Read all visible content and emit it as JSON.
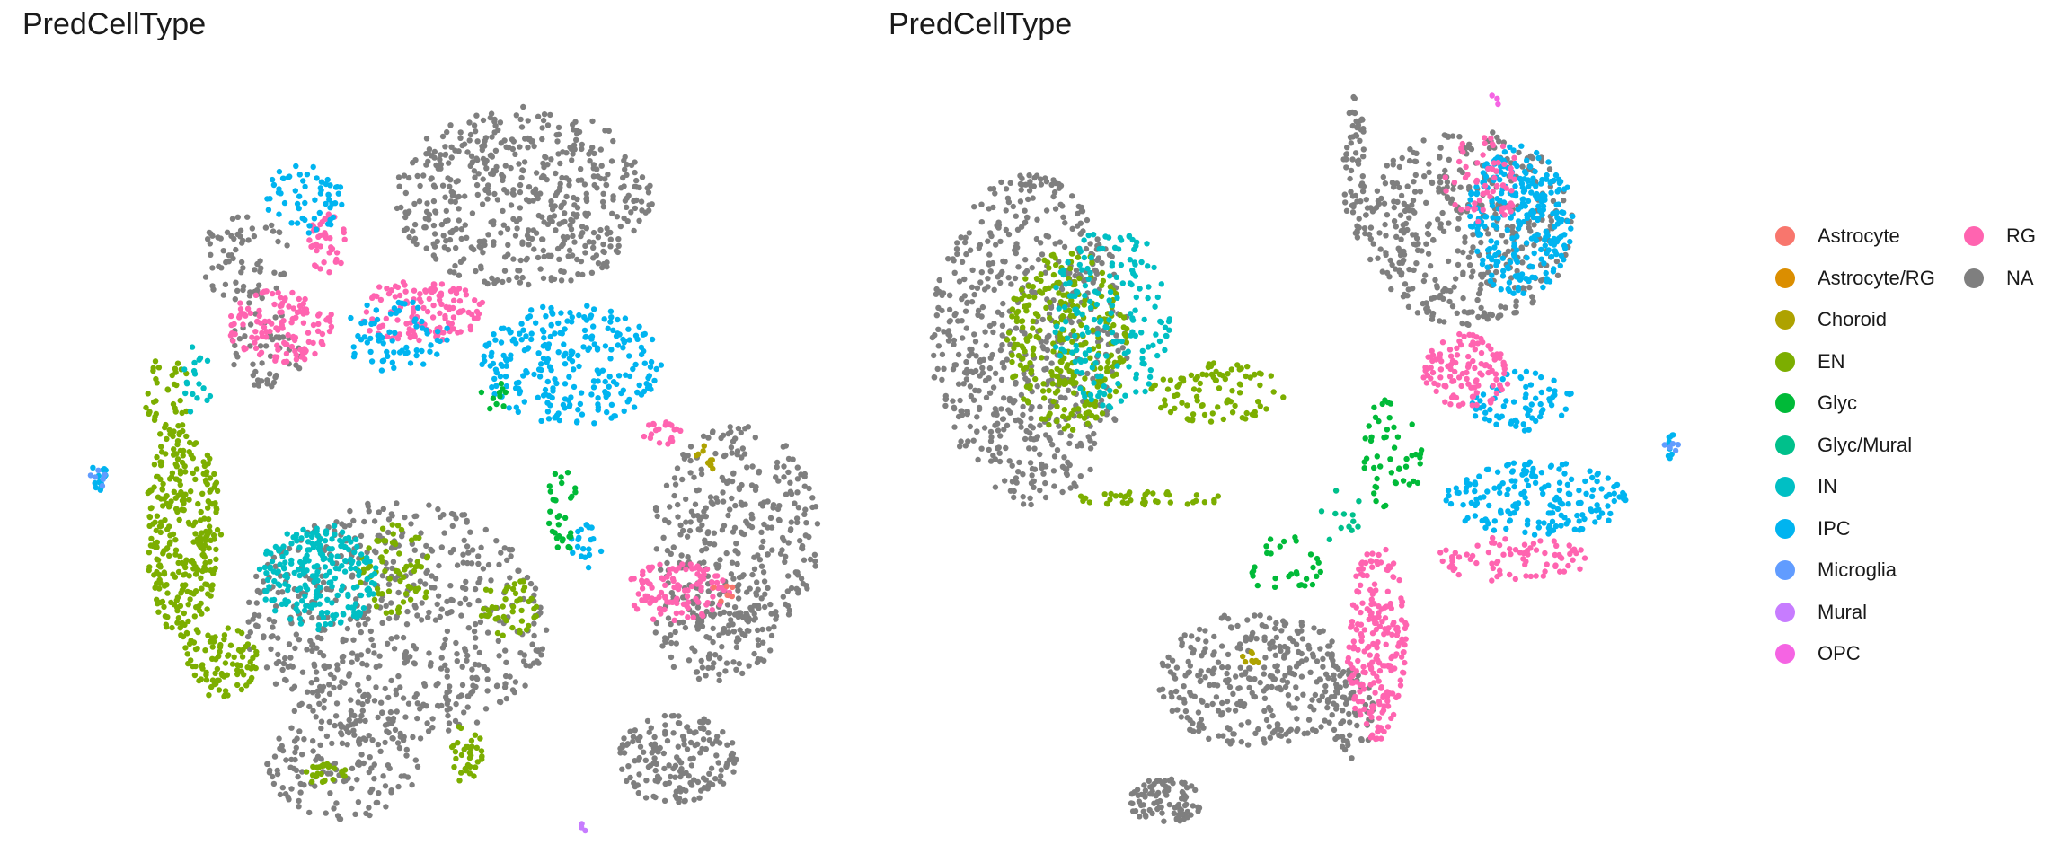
{
  "panels": [
    {
      "title": "PredCellType"
    },
    {
      "title": "PredCellType"
    }
  ],
  "legend": {
    "title": "",
    "items": [
      {
        "label": "Astrocyte",
        "color": "#F8766D"
      },
      {
        "label": "Astrocyte/RG",
        "color": "#DB8E00"
      },
      {
        "label": "Choroid",
        "color": "#AEA200"
      },
      {
        "label": "EN",
        "color": "#7CAE00"
      },
      {
        "label": "Glyc",
        "color": "#00BA38"
      },
      {
        "label": "Glyc/Mural",
        "color": "#00C08B"
      },
      {
        "label": "IN",
        "color": "#00BFC4"
      },
      {
        "label": "IPC",
        "color": "#00B4F0"
      },
      {
        "label": "Microglia",
        "color": "#619CFF"
      },
      {
        "label": "Mural",
        "color": "#C77CFF"
      },
      {
        "label": "OPC",
        "color": "#F564E3"
      },
      {
        "label": "RG",
        "color": "#FF64B0"
      },
      {
        "label": "NA",
        "color": "#7F7F7F"
      }
    ]
  },
  "chart_data": [
    {
      "type": "scatter",
      "title": "PredCellType",
      "xlabel": "",
      "ylabel": "",
      "axes_visible": false,
      "grid": false,
      "legend_placement": "right",
      "clusters": [
        {
          "category": "NA",
          "cx": 0.62,
          "cy": 0.16,
          "rx": 0.17,
          "ry": 0.12,
          "n": 520
        },
        {
          "category": "NA",
          "cx": 0.9,
          "cy": 0.6,
          "rx": 0.11,
          "ry": 0.14,
          "n": 320
        },
        {
          "category": "NA",
          "cx": 0.25,
          "cy": 0.24,
          "rx": 0.06,
          "ry": 0.06,
          "n": 70
        },
        {
          "category": "NA",
          "cx": 0.45,
          "cy": 0.72,
          "rx": 0.2,
          "ry": 0.16,
          "n": 600
        },
        {
          "category": "NA",
          "cx": 0.82,
          "cy": 0.9,
          "rx": 0.08,
          "ry": 0.06,
          "n": 170
        },
        {
          "category": "NA",
          "cx": 0.87,
          "cy": 0.73,
          "rx": 0.08,
          "ry": 0.07,
          "n": 130
        },
        {
          "category": "NA",
          "cx": 0.38,
          "cy": 0.91,
          "rx": 0.1,
          "ry": 0.07,
          "n": 140
        },
        {
          "category": "NA",
          "cx": 0.28,
          "cy": 0.36,
          "rx": 0.05,
          "ry": 0.05,
          "n": 50
        },
        {
          "category": "RG",
          "cx": 0.3,
          "cy": 0.33,
          "rx": 0.07,
          "ry": 0.05,
          "n": 130
        },
        {
          "category": "RG",
          "cx": 0.48,
          "cy": 0.31,
          "rx": 0.09,
          "ry": 0.04,
          "n": 130
        },
        {
          "category": "RG",
          "cx": 0.36,
          "cy": 0.22,
          "rx": 0.025,
          "ry": 0.04,
          "n": 40
        },
        {
          "category": "RG",
          "cx": 0.82,
          "cy": 0.68,
          "rx": 0.07,
          "ry": 0.04,
          "n": 110
        },
        {
          "category": "RG",
          "cx": 0.8,
          "cy": 0.47,
          "rx": 0.03,
          "ry": 0.02,
          "n": 20
        },
        {
          "category": "IPC",
          "cx": 0.33,
          "cy": 0.16,
          "rx": 0.05,
          "ry": 0.05,
          "n": 60
        },
        {
          "category": "IPC",
          "cx": 0.68,
          "cy": 0.38,
          "rx": 0.12,
          "ry": 0.08,
          "n": 260
        },
        {
          "category": "IPC",
          "cx": 0.45,
          "cy": 0.34,
          "rx": 0.07,
          "ry": 0.05,
          "n": 70
        },
        {
          "category": "IPC",
          "cx": 0.06,
          "cy": 0.53,
          "rx": 0.015,
          "ry": 0.02,
          "n": 14
        },
        {
          "category": "IPC",
          "cx": 0.7,
          "cy": 0.62,
          "rx": 0.025,
          "ry": 0.03,
          "n": 20
        },
        {
          "category": "EN",
          "cx": 0.17,
          "cy": 0.6,
          "rx": 0.05,
          "ry": 0.14,
          "n": 300
        },
        {
          "category": "EN",
          "cx": 0.22,
          "cy": 0.77,
          "rx": 0.05,
          "ry": 0.05,
          "n": 90
        },
        {
          "category": "EN",
          "cx": 0.45,
          "cy": 0.65,
          "rx": 0.05,
          "ry": 0.06,
          "n": 70
        },
        {
          "category": "EN",
          "cx": 0.6,
          "cy": 0.7,
          "rx": 0.04,
          "ry": 0.04,
          "n": 45
        },
        {
          "category": "EN",
          "cx": 0.54,
          "cy": 0.89,
          "rx": 0.025,
          "ry": 0.04,
          "n": 35
        },
        {
          "category": "EN",
          "cx": 0.36,
          "cy": 0.92,
          "rx": 0.03,
          "ry": 0.015,
          "n": 25
        },
        {
          "category": "EN",
          "cx": 0.15,
          "cy": 0.42,
          "rx": 0.03,
          "ry": 0.06,
          "n": 40
        },
        {
          "category": "IN",
          "cx": 0.35,
          "cy": 0.66,
          "rx": 0.08,
          "ry": 0.07,
          "n": 230
        },
        {
          "category": "IN",
          "cx": 0.19,
          "cy": 0.4,
          "rx": 0.02,
          "ry": 0.05,
          "n": 18
        },
        {
          "category": "Glyc",
          "cx": 0.67,
          "cy": 0.57,
          "rx": 0.02,
          "ry": 0.06,
          "n": 30
        },
        {
          "category": "Glyc",
          "cx": 0.58,
          "cy": 0.42,
          "rx": 0.02,
          "ry": 0.02,
          "n": 10
        },
        {
          "category": "Choroid",
          "cx": 0.86,
          "cy": 0.5,
          "rx": 0.02,
          "ry": 0.02,
          "n": 10
        },
        {
          "category": "Astrocyte",
          "cx": 0.88,
          "cy": 0.68,
          "rx": 0.02,
          "ry": 0.02,
          "n": 6
        },
        {
          "category": "Microglia",
          "cx": 0.06,
          "cy": 0.53,
          "rx": 0.015,
          "ry": 0.015,
          "n": 6
        },
        {
          "category": "Mural",
          "cx": 0.7,
          "cy": 0.99,
          "rx": 0.008,
          "ry": 0.006,
          "n": 3
        }
      ]
    },
    {
      "type": "scatter",
      "title": "PredCellType",
      "xlabel": "",
      "ylabel": "",
      "axes_visible": false,
      "grid": false,
      "legend_placement": "right",
      "clusters": [
        {
          "category": "NA",
          "cx": 0.15,
          "cy": 0.35,
          "rx": 0.13,
          "ry": 0.22,
          "n": 600
        },
        {
          "category": "NA",
          "cx": 0.73,
          "cy": 0.2,
          "rx": 0.14,
          "ry": 0.13,
          "n": 420
        },
        {
          "category": "NA",
          "cx": 0.45,
          "cy": 0.8,
          "rx": 0.13,
          "ry": 0.09,
          "n": 320
        },
        {
          "category": "NA",
          "cx": 0.33,
          "cy": 0.96,
          "rx": 0.05,
          "ry": 0.03,
          "n": 90
        },
        {
          "category": "NA",
          "cx": 0.58,
          "cy": 0.12,
          "rx": 0.015,
          "ry": 0.1,
          "n": 60
        },
        {
          "category": "NA",
          "cx": 0.58,
          "cy": 0.85,
          "rx": 0.03,
          "ry": 0.06,
          "n": 50
        },
        {
          "category": "EN",
          "cx": 0.2,
          "cy": 0.35,
          "rx": 0.08,
          "ry": 0.12,
          "n": 280
        },
        {
          "category": "EN",
          "cx": 0.4,
          "cy": 0.42,
          "rx": 0.09,
          "ry": 0.04,
          "n": 90
        },
        {
          "category": "EN",
          "cx": 0.31,
          "cy": 0.56,
          "rx": 0.1,
          "ry": 0.01,
          "n": 40
        },
        {
          "category": "IN",
          "cx": 0.26,
          "cy": 0.32,
          "rx": 0.08,
          "ry": 0.12,
          "n": 180
        },
        {
          "category": "IPC",
          "cx": 0.8,
          "cy": 0.19,
          "rx": 0.07,
          "ry": 0.1,
          "n": 280
        },
        {
          "category": "IPC",
          "cx": 0.82,
          "cy": 0.56,
          "rx": 0.12,
          "ry": 0.05,
          "n": 180
        },
        {
          "category": "IPC",
          "cx": 0.8,
          "cy": 0.43,
          "rx": 0.07,
          "ry": 0.04,
          "n": 70
        },
        {
          "category": "IPC",
          "cx": 1.0,
          "cy": 0.49,
          "rx": 0.01,
          "ry": 0.02,
          "n": 10
        },
        {
          "category": "RG",
          "cx": 0.73,
          "cy": 0.39,
          "rx": 0.06,
          "ry": 0.05,
          "n": 120
        },
        {
          "category": "RG",
          "cx": 0.61,
          "cy": 0.75,
          "rx": 0.04,
          "ry": 0.13,
          "n": 220
        },
        {
          "category": "RG",
          "cx": 0.79,
          "cy": 0.64,
          "rx": 0.1,
          "ry": 0.03,
          "n": 80
        },
        {
          "category": "RG",
          "cx": 0.75,
          "cy": 0.14,
          "rx": 0.05,
          "ry": 0.06,
          "n": 60
        },
        {
          "category": "Glyc",
          "cx": 0.63,
          "cy": 0.5,
          "rx": 0.04,
          "ry": 0.08,
          "n": 50
        },
        {
          "category": "Glyc",
          "cx": 0.49,
          "cy": 0.65,
          "rx": 0.05,
          "ry": 0.04,
          "n": 30
        },
        {
          "category": "Glyc/Mural",
          "cx": 0.56,
          "cy": 0.58,
          "rx": 0.03,
          "ry": 0.04,
          "n": 12
        },
        {
          "category": "Choroid",
          "cx": 0.44,
          "cy": 0.77,
          "rx": 0.015,
          "ry": 0.015,
          "n": 8
        },
        {
          "category": "Microglia",
          "cx": 1.0,
          "cy": 0.49,
          "rx": 0.01,
          "ry": 0.01,
          "n": 5
        },
        {
          "category": "OPC",
          "cx": 0.77,
          "cy": 0.03,
          "rx": 0.01,
          "ry": 0.01,
          "n": 3
        }
      ]
    }
  ]
}
